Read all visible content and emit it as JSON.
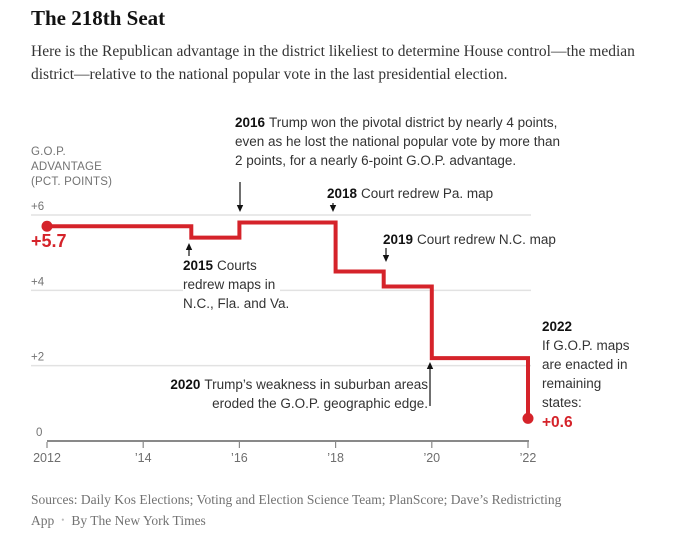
{
  "header": {
    "title": "The 218th Seat",
    "subtitle": "Here is the Republican advantage in the district likeliest to determine House control—the median district—relative to the national popular vote in the last presidential election."
  },
  "axis": {
    "unit_label_lines": [
      "G.O.P.",
      "ADVANTAGE",
      "(PCT. POINTS)"
    ],
    "y_ticks": [
      {
        "label": "+6",
        "value": 6
      },
      {
        "label": "+4",
        "value": 4
      },
      {
        "label": "+2",
        "value": 2
      },
      {
        "label": "0",
        "value": 0
      }
    ],
    "x_ticks": [
      {
        "label": "2012",
        "year": 2012
      },
      {
        "label": "’14",
        "year": 2014
      },
      {
        "label": "’16",
        "year": 2016
      },
      {
        "label": "’18",
        "year": 2018
      },
      {
        "label": "’20",
        "year": 2020
      },
      {
        "label": "’22",
        "year": 2022
      }
    ]
  },
  "chart_data": {
    "type": "line",
    "subtype": "step",
    "title": "The 218th Seat",
    "xlabel": "",
    "ylabel": "G.O.P. advantage (pct. points)",
    "xlim": [
      2012,
      2022
    ],
    "ylim": [
      0,
      6
    ],
    "grid": "horizontal",
    "legend": "none",
    "series": [
      {
        "name": "Republican advantage in the median House district",
        "color": "#d5232a",
        "points": [
          {
            "year": 2012,
            "value": 5.7
          },
          {
            "year": 2015,
            "value": 5.7
          },
          {
            "year": 2015,
            "value": 5.4
          },
          {
            "year": 2016,
            "value": 5.4
          },
          {
            "year": 2016,
            "value": 5.8
          },
          {
            "year": 2018,
            "value": 5.8
          },
          {
            "year": 2018,
            "value": 4.5
          },
          {
            "year": 2019,
            "value": 4.5
          },
          {
            "year": 2019,
            "value": 4.1
          },
          {
            "year": 2020,
            "value": 4.1
          },
          {
            "year": 2020,
            "value": 2.2
          },
          {
            "year": 2022,
            "value": 2.2
          },
          {
            "year": 2022,
            "value": 0.6
          }
        ]
      }
    ],
    "endpoints": [
      {
        "year": 2012,
        "value": 5.7,
        "label": "+5.7"
      },
      {
        "year": 2022,
        "value": 0.6,
        "label": "+0.6"
      }
    ],
    "annotations": {
      "a2016": {
        "year": "2016",
        "lines": [
          "Trump won the pivotal district by nearly 4 points,",
          "even as he lost the national popular vote by more than",
          "2 points, for a nearly 6-point G.O.P. advantage."
        ]
      },
      "a2018": {
        "year": "2018",
        "text": "Court redrew Pa. map"
      },
      "a2019": {
        "year": "2019",
        "text": "Court redrew N.C. map"
      },
      "a2015": {
        "year": "2015",
        "lines": [
          "Courts",
          "redrew maps in",
          "N.C., Fla. and Va."
        ]
      },
      "a2020": {
        "year": "2020",
        "lines": [
          "Trump’s weakness in suburban areas",
          "eroded the G.O.P. geographic edge."
        ]
      },
      "a2022": {
        "year": "2022",
        "lines": [
          "If G.O.P. maps",
          "are enacted in",
          "remaining",
          "states:"
        ]
      }
    }
  },
  "footer": {
    "sources_line1": "Sources: Daily Kos Elections; Voting and Election Science Team; PlanScore; Dave’s Redistricting",
    "sources_line2": "App",
    "separator": "•",
    "byline": "By The New York Times"
  }
}
